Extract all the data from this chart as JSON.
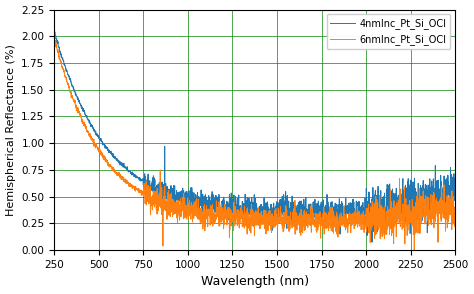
{
  "title": "",
  "xlabel": "Wavelength (nm)",
  "ylabel": "Hemispherical Reflectance (%)",
  "xlim": [
    250,
    2500
  ],
  "ylim": [
    0.0,
    2.25
  ],
  "yticks": [
    0.0,
    0.25,
    0.5,
    0.75,
    1.0,
    1.25,
    1.5,
    1.75,
    2.0,
    2.25
  ],
  "xticks": [
    250,
    500,
    750,
    1000,
    1250,
    1500,
    1750,
    2000,
    2250,
    2500
  ],
  "color_4nm": "#1f77b4",
  "color_6nm": "#ff7f0e",
  "label_4nm": "4nmInc_Pt_Si_OCI",
  "label_6nm": "6nmInc_Pt_Si_OCI",
  "grid_color": "green",
  "background_color": "#ffffff",
  "legend_loc": "upper right"
}
